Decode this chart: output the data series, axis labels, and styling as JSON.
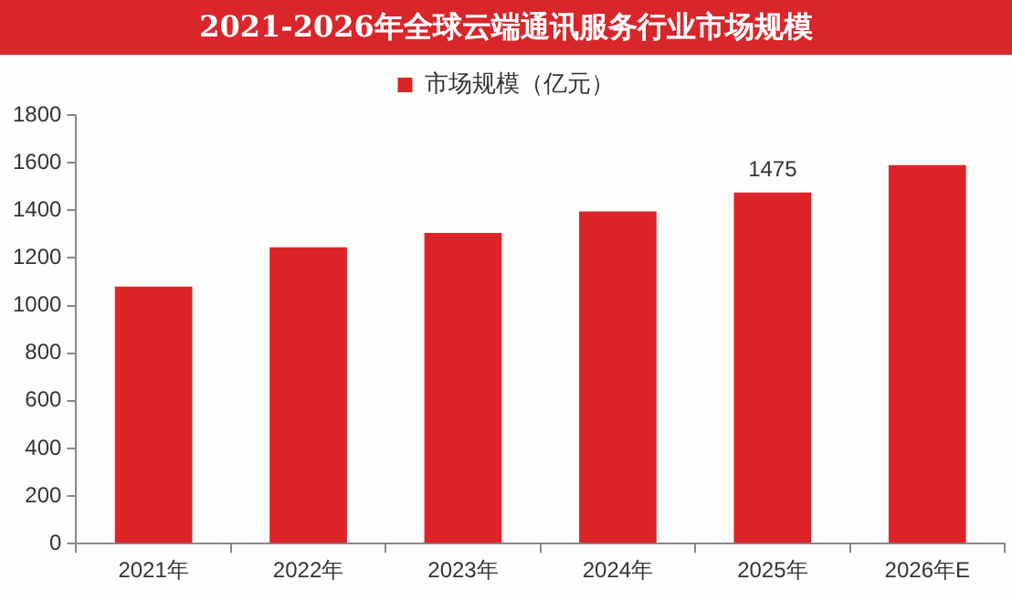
{
  "chart_data": {
    "type": "bar",
    "title": "2021-2026年全球云端通讯服务行业市场规模",
    "categories": [
      "2021年",
      "2022年",
      "2023年",
      "2024年",
      "2025年",
      "2026年E"
    ],
    "series": [
      {
        "name": "市场规模（亿元）",
        "color": "#dc2428",
        "values": [
          1080,
          1245,
          1305,
          1395,
          1475,
          1590
        ],
        "value_labels": [
          null,
          null,
          null,
          null,
          "1475",
          null
        ]
      }
    ],
    "ylim": [
      0,
      1800
    ],
    "yticks": [
      0,
      200,
      400,
      600,
      800,
      1000,
      1200,
      1400,
      1600,
      1800
    ],
    "grid": false,
    "legend": "top"
  }
}
